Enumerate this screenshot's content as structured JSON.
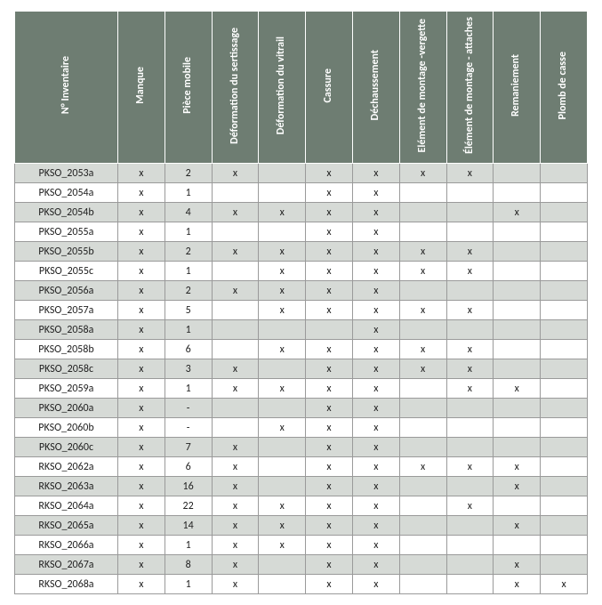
{
  "table": {
    "columns": [
      "N° Inventaire",
      "Manque",
      "Pièce mobile",
      "Déformation du sertissage",
      "Déformation du vitrail",
      "Cassure",
      "Déchaussement",
      "Elément de montage -vergette",
      "Élément de montage - attaches",
      "Remaniement",
      "Plomb de casse"
    ],
    "header_bg": "#6e7d72",
    "header_fg": "#ffffff",
    "row_shade_bg": "#d6dad6",
    "row_plain_bg": "#ffffff",
    "border_color": "#9a9a9a",
    "rows": [
      {
        "shaded": true,
        "cells": [
          "PKSO_2053a",
          "x",
          "2",
          "x",
          "",
          "x",
          "x",
          "x",
          "x",
          "",
          ""
        ]
      },
      {
        "shaded": false,
        "cells": [
          "PKSO_2054a",
          "x",
          "1",
          "",
          "",
          "x",
          "x",
          "",
          "",
          "",
          ""
        ]
      },
      {
        "shaded": true,
        "cells": [
          "PKSO_2054b",
          "x",
          "4",
          "x",
          "x",
          "x",
          "x",
          "",
          "",
          "x",
          ""
        ]
      },
      {
        "shaded": false,
        "cells": [
          "PKSO_2055a",
          "x",
          "1",
          "",
          "",
          "x",
          "x",
          "",
          "",
          "",
          ""
        ]
      },
      {
        "shaded": true,
        "cells": [
          "PKSO_2055b",
          "x",
          "2",
          "x",
          "x",
          "x",
          "x",
          "x",
          "x",
          "",
          ""
        ]
      },
      {
        "shaded": false,
        "cells": [
          "PKSO_2055c",
          "x",
          "1",
          "",
          "x",
          "x",
          "x",
          "x",
          "x",
          "",
          ""
        ]
      },
      {
        "shaded": true,
        "cells": [
          "PKSO_2056a",
          "x",
          "2",
          "x",
          "x",
          "x",
          "x",
          "",
          "",
          "",
          ""
        ]
      },
      {
        "shaded": false,
        "cells": [
          "PKSO_2057a",
          "x",
          "5",
          "",
          "x",
          "x",
          "x",
          "x",
          "x",
          "",
          ""
        ]
      },
      {
        "shaded": true,
        "cells": [
          "PKSO_2058a",
          "x",
          "1",
          "",
          "",
          "",
          "x",
          "",
          "",
          "",
          ""
        ]
      },
      {
        "shaded": false,
        "cells": [
          "PKSO_2058b",
          "x",
          "6",
          "",
          "x",
          "x",
          "x",
          "x",
          "x",
          "",
          ""
        ]
      },
      {
        "shaded": true,
        "cells": [
          "PKSO_2058c",
          "x",
          "3",
          "x",
          "",
          "x",
          "x",
          "x",
          "x",
          "",
          ""
        ]
      },
      {
        "shaded": false,
        "cells": [
          "PKSO_2059a",
          "x",
          "1",
          "x",
          "x",
          "x",
          "x",
          "",
          "x",
          "x",
          ""
        ]
      },
      {
        "shaded": true,
        "cells": [
          "PKSO_2060a",
          "x",
          "-",
          "",
          "",
          "x",
          "x",
          "",
          "",
          "",
          ""
        ]
      },
      {
        "shaded": false,
        "cells": [
          "PKSO_2060b",
          "x",
          "-",
          "",
          "x",
          "x",
          "x",
          "",
          "",
          "",
          ""
        ]
      },
      {
        "shaded": true,
        "cells": [
          "PKSO_2060c",
          "x",
          "7",
          "x",
          "",
          "x",
          "x",
          "",
          "",
          "",
          ""
        ]
      },
      {
        "shaded": false,
        "cells": [
          "RKSO_2062a",
          "x",
          "6",
          "x",
          "",
          "x",
          "x",
          "x",
          "x",
          "x",
          ""
        ]
      },
      {
        "shaded": true,
        "cells": [
          "RKSO_2063a",
          "x",
          "16",
          "x",
          "",
          "x",
          "x",
          "",
          "",
          "x",
          ""
        ]
      },
      {
        "shaded": false,
        "cells": [
          "RKSO_2064a",
          "x",
          "22",
          "x",
          "x",
          "x",
          "x",
          "",
          "x",
          "",
          ""
        ]
      },
      {
        "shaded": true,
        "cells": [
          "RKSO_2065a",
          "x",
          "14",
          "x",
          "x",
          "x",
          "x",
          "",
          "",
          "x",
          ""
        ]
      },
      {
        "shaded": false,
        "cells": [
          "RKSO_2066a",
          "x",
          "1",
          "x",
          "x",
          "x",
          "x",
          "",
          "",
          "",
          ""
        ]
      },
      {
        "shaded": true,
        "cells": [
          "RKSO_2067a",
          "x",
          "8",
          "x",
          "",
          "x",
          "x",
          "",
          "",
          "x",
          ""
        ]
      },
      {
        "shaded": false,
        "cells": [
          "RKSO_2068a",
          "x",
          "1",
          "x",
          "",
          "x",
          "x",
          "",
          "",
          "x",
          "x"
        ]
      }
    ]
  }
}
